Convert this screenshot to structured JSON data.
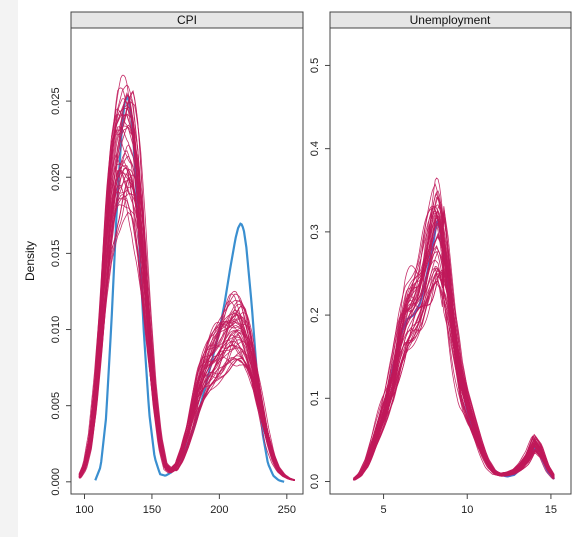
{
  "chart_data": [
    {
      "type": "line",
      "title": "CPI",
      "ylabel": "Density",
      "xlim": [
        90,
        262
      ],
      "ylim": [
        -0.0008,
        0.0298
      ],
      "xticks": [
        100,
        150,
        200,
        250
      ],
      "yticks": [
        0.0,
        0.005,
        0.01,
        0.015,
        0.02,
        0.025
      ],
      "ytick_labels": [
        "0.000",
        "0.005",
        "0.010",
        "0.015",
        "0.020",
        "0.025"
      ],
      "grid": false,
      "observed": {
        "color": "#3a8fd0",
        "x": [
          108,
          112,
          116,
          120,
          124,
          128,
          130,
          132,
          134,
          136,
          140,
          144,
          148,
          152,
          156,
          160,
          164,
          168,
          172,
          176,
          180,
          184,
          188,
          192,
          196,
          200,
          204,
          208,
          212,
          214,
          216,
          218,
          220,
          224,
          228,
          232,
          236,
          240,
          244,
          248
        ],
        "y": [
          0.0001,
          0.001,
          0.0042,
          0.0105,
          0.018,
          0.0236,
          0.025,
          0.0253,
          0.0246,
          0.0228,
          0.0168,
          0.0098,
          0.0045,
          0.0016,
          0.0005,
          0.0004,
          0.0006,
          0.001,
          0.0016,
          0.0024,
          0.0033,
          0.0044,
          0.0057,
          0.0071,
          0.0085,
          0.0099,
          0.0118,
          0.014,
          0.016,
          0.0167,
          0.017,
          0.0166,
          0.0154,
          0.0116,
          0.0069,
          0.0032,
          0.0012,
          0.0004,
          0.0001,
          0.0
        ]
      },
      "imputed": {
        "color": "#c0185a",
        "count": 45,
        "x": [
          96,
          100,
          104,
          108,
          112,
          116,
          120,
          124,
          128,
          132,
          136,
          140,
          144,
          148,
          152,
          156,
          160,
          164,
          168,
          172,
          176,
          180,
          184,
          188,
          192,
          196,
          200,
          204,
          208,
          212,
          216,
          220,
          224,
          228,
          232,
          236,
          240,
          244,
          248,
          252,
          256
        ],
        "y": [
          0.0003,
          0.001,
          0.0026,
          0.0056,
          0.0098,
          0.0146,
          0.0186,
          0.0208,
          0.0215,
          0.0215,
          0.0205,
          0.018,
          0.014,
          0.0095,
          0.0055,
          0.0026,
          0.001,
          0.0007,
          0.001,
          0.0018,
          0.003,
          0.0044,
          0.0058,
          0.0068,
          0.0076,
          0.0082,
          0.0088,
          0.0093,
          0.0097,
          0.0099,
          0.0098,
          0.0092,
          0.008,
          0.0062,
          0.0044,
          0.0028,
          0.0016,
          0.0008,
          0.0004,
          0.0002,
          0.0001
        ]
      }
    },
    {
      "type": "line",
      "title": "Unemployment",
      "ylabel": "",
      "xlim": [
        1.8,
        16.2
      ],
      "ylim": [
        -0.015,
        0.545
      ],
      "xticks": [
        5,
        10,
        15
      ],
      "yticks": [
        0.0,
        0.1,
        0.2,
        0.3,
        0.4,
        0.5
      ],
      "ytick_labels": [
        "0.0",
        "0.1",
        "0.2",
        "0.3",
        "0.4",
        "0.5"
      ],
      "grid": false,
      "observed": {
        "color": "#4a6fd0",
        "x": [
          3.2,
          3.6,
          4.0,
          4.4,
          4.8,
          5.2,
          5.6,
          6.0,
          6.4,
          6.8,
          7.2,
          7.6,
          8.0,
          8.2,
          8.4,
          8.8,
          9.2,
          9.6,
          10.0,
          10.4,
          10.8,
          11.2,
          11.6,
          12.0,
          12.4,
          12.8,
          13.2,
          13.6,
          14.0,
          14.4,
          14.8,
          15.2
        ],
        "y": [
          0.002,
          0.008,
          0.02,
          0.04,
          0.065,
          0.1,
          0.14,
          0.175,
          0.195,
          0.2,
          0.215,
          0.25,
          0.29,
          0.315,
          0.3,
          0.25,
          0.18,
          0.12,
          0.085,
          0.06,
          0.04,
          0.025,
          0.014,
          0.008,
          0.006,
          0.008,
          0.015,
          0.025,
          0.04,
          0.03,
          0.012,
          0.003
        ]
      },
      "imputed": {
        "color": "#c0185a",
        "count": 45,
        "x": [
          3.2,
          3.6,
          4.0,
          4.4,
          4.8,
          5.2,
          5.6,
          6.0,
          6.4,
          6.8,
          7.2,
          7.6,
          8.0,
          8.2,
          8.4,
          8.8,
          9.2,
          9.6,
          10.0,
          10.4,
          10.8,
          11.2,
          11.6,
          12.0,
          12.4,
          12.8,
          13.2,
          13.6,
          14.0,
          14.4,
          14.8,
          15.2
        ],
        "y": [
          0.002,
          0.008,
          0.022,
          0.045,
          0.07,
          0.095,
          0.125,
          0.165,
          0.195,
          0.21,
          0.225,
          0.255,
          0.285,
          0.295,
          0.285,
          0.24,
          0.175,
          0.12,
          0.09,
          0.065,
          0.042,
          0.022,
          0.011,
          0.008,
          0.009,
          0.012,
          0.018,
          0.028,
          0.045,
          0.036,
          0.016,
          0.004
        ]
      }
    }
  ]
}
